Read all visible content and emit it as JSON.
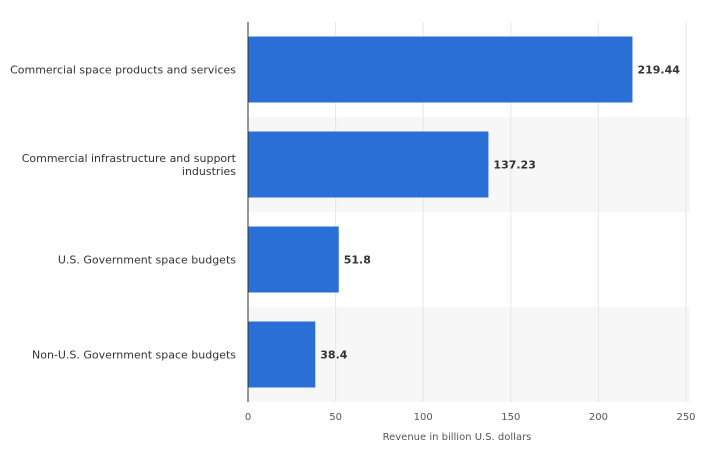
{
  "chart_data": {
    "type": "bar",
    "orientation": "horizontal",
    "title": "",
    "xlabel": "Revenue in billion U.S. dollars",
    "ylabel": "",
    "categories": [
      [
        "Commercial space products and services"
      ],
      [
        "Commercial infrastructure and support",
        "industries"
      ],
      [
        "U.S. Government space budgets"
      ],
      [
        "Non-U.S. Government space budgets"
      ]
    ],
    "values": [
      219.44,
      137.23,
      51.8,
      38.4
    ],
    "value_labels": [
      "219.44",
      "137.23",
      "51.8",
      "38.4"
    ],
    "xlim": [
      0,
      250
    ],
    "ticks": [
      0,
      50,
      100,
      150,
      200,
      250
    ],
    "tick_labels": [
      "0",
      "50",
      "100",
      "150",
      "200",
      "250"
    ],
    "grid": true,
    "legend": "none"
  },
  "colors": {
    "bar": "#2a6fd6",
    "band": "#f7f7f7",
    "grid": "#e6e6e6",
    "axis": "#333333"
  }
}
